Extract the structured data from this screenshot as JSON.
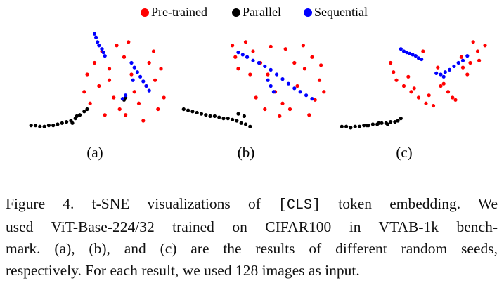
{
  "legend": [
    {
      "name": "Pre-trained",
      "color": "#ff0000"
    },
    {
      "name": "Parallel",
      "color": "#000000"
    },
    {
      "name": "Sequential",
      "color": "#0000ff"
    }
  ],
  "chart_data": [
    {
      "type": "scatter",
      "label": "(a)",
      "xlim": [
        0,
        100
      ],
      "ylim": [
        0,
        100
      ],
      "series": [
        {
          "color": "#ff0000",
          "x": [
            40,
            45,
            50,
            55,
            60,
            38,
            42,
            58,
            62,
            66,
            70,
            75,
            80,
            85,
            90,
            92,
            88,
            78,
            72,
            65,
            55,
            48,
            52,
            68,
            82,
            86
          ],
          "y": [
            60,
            70,
            80,
            55,
            85,
            45,
            35,
            40,
            30,
            25,
            60,
            35,
            50,
            80,
            65,
            40,
            30,
            20,
            45,
            75,
            65,
            50,
            25,
            88,
            70,
            55
          ]
        },
        {
          "color": "#000000",
          "x": [
            2,
            5,
            8,
            11,
            14,
            17,
            20,
            23,
            26,
            29,
            32,
            35,
            38,
            40,
            33,
            30,
            66,
            65
          ],
          "y": [
            16,
            16,
            15,
            15,
            16,
            16,
            17,
            18,
            19,
            20,
            22,
            25,
            28,
            30,
            24,
            18,
            40,
            38
          ]
        },
        {
          "color": "#0000ff",
          "x": [
            45,
            46,
            47,
            48,
            50,
            51,
            52,
            70,
            72,
            74,
            76,
            78,
            80,
            82,
            66,
            64,
            71
          ],
          "y": [
            95,
            92,
            88,
            85,
            82,
            79,
            76,
            70,
            66,
            62,
            58,
            54,
            50,
            46,
            42,
            39,
            55
          ]
        }
      ]
    },
    {
      "type": "scatter",
      "label": "(b)",
      "xlim": [
        0,
        100
      ],
      "ylim": [
        0,
        100
      ],
      "series": [
        {
          "color": "#ff0000",
          "x": [
            36,
            38,
            40,
            45,
            50,
            55,
            60,
            65,
            70,
            75,
            80,
            85,
            90,
            95,
            98,
            92,
            88,
            72,
            62,
            58,
            52,
            78,
            68,
            84,
            48,
            96
          ],
          "y": [
            85,
            75,
            65,
            88,
            80,
            70,
            60,
            45,
            35,
            30,
            50,
            65,
            75,
            55,
            45,
            38,
            25,
            82,
            84,
            30,
            40,
            70,
            24,
            85,
            60,
            68
          ]
        },
        {
          "color": "#000000",
          "x": [
            3,
            6,
            9,
            12,
            15,
            18,
            21,
            24,
            27,
            30,
            33,
            36,
            39,
            42,
            45,
            48,
            44,
            40
          ],
          "y": [
            30,
            29,
            28,
            27,
            26,
            25,
            24,
            24,
            23,
            22,
            22,
            21,
            20,
            18,
            17,
            15,
            24,
            26
          ]
        },
        {
          "color": "#0000ff",
          "x": [
            40,
            43,
            46,
            50,
            54,
            58,
            62,
            66,
            70,
            74,
            78,
            82,
            86,
            90,
            60,
            62,
            64
          ],
          "y": [
            79,
            77,
            75,
            72,
            70,
            67,
            64,
            60,
            56,
            52,
            48,
            45,
            42,
            39,
            55,
            50,
            45
          ]
        }
      ]
    },
    {
      "type": "scatter",
      "label": "(c)",
      "xlim": [
        0,
        100
      ],
      "ylim": [
        0,
        100
      ],
      "series": [
        {
          "color": "#ff0000",
          "x": [
            36,
            38,
            40,
            45,
            50,
            55,
            60,
            65,
            70,
            75,
            80,
            85,
            90,
            95,
            100,
            92,
            88,
            72,
            62,
            58,
            52,
            78,
            68,
            84,
            48,
            96
          ],
          "y": [
            70,
            62,
            55,
            50,
            45,
            40,
            35,
            33,
            50,
            45,
            38,
            66,
            70,
            80,
            85,
            88,
            60,
            52,
            42,
            80,
            48,
            40,
            66,
            75,
            58,
            72
          ]
        },
        {
          "color": "#000000",
          "x": [
            3,
            6,
            9,
            12,
            15,
            18,
            21,
            24,
            27,
            30,
            33,
            36,
            39,
            41,
            43,
            34,
            28,
            20
          ],
          "y": [
            15,
            15,
            14,
            15,
            15,
            16,
            16,
            17,
            17,
            18,
            18,
            19,
            19,
            20,
            22,
            17,
            18,
            16
          ]
        },
        {
          "color": "#0000ff",
          "x": [
            43,
            45,
            47,
            49,
            51,
            53,
            55,
            57,
            67,
            70,
            73,
            76,
            79,
            82,
            85,
            88,
            72
          ],
          "y": [
            82,
            80,
            79,
            78,
            77,
            76,
            74,
            73,
            61,
            60,
            62,
            64,
            67,
            70,
            72,
            76,
            58
          ]
        }
      ]
    }
  ],
  "caption": {
    "first": [
      "Figure 4.  t-SNE visualizations of",
      "[CLS]",
      "token embedding.  We"
    ],
    "lines": [
      "used ViT-Base-224/32 trained on CIFAR100 in VTAB-1k bench-",
      "mark.  (a), (b), and (c) are the results of different random seeds,",
      "respectively. For each result, we used 128 images as input."
    ]
  }
}
